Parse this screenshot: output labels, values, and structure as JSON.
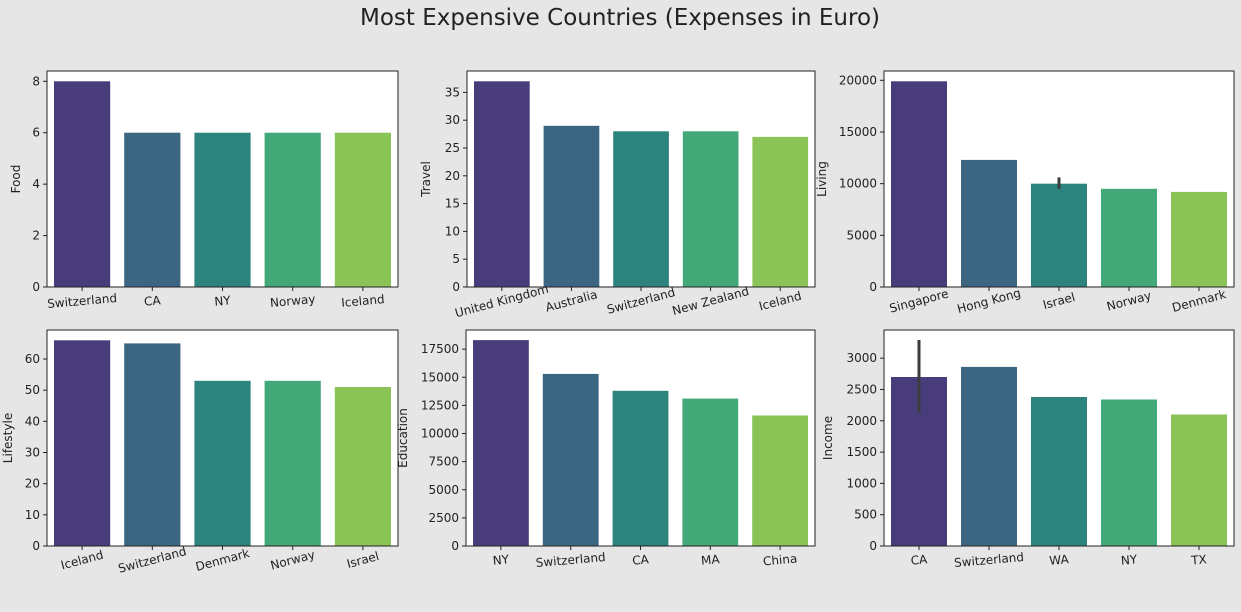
{
  "title": "Most Expensive Countries (Expenses in Euro)",
  "palette": [
    "#483d7a",
    "#3b6580",
    "#2d847e",
    "#42a877",
    "#8ac456"
  ],
  "chart_data": [
    {
      "type": "bar",
      "ylabel": "Food",
      "categories": [
        "Switzerland",
        "CA",
        "NY",
        "Norway",
        "Iceland"
      ],
      "values": [
        8,
        6,
        6,
        6,
        6
      ],
      "ylim": [
        0,
        8.4
      ],
      "yticks": [
        0,
        2,
        4,
        6,
        8
      ],
      "yticklabels": [
        "0",
        "2",
        "4",
        "6",
        "8"
      ],
      "xtick_rotation": 5,
      "grid": false
    },
    {
      "type": "bar",
      "ylabel": "Travel",
      "categories": [
        "United Kingdom",
        "Australia",
        "Switzerland",
        "New Zealand",
        "Iceland"
      ],
      "values": [
        37,
        29,
        28,
        28,
        27
      ],
      "ylim": [
        0,
        38.85
      ],
      "yticks": [
        0,
        5,
        10,
        15,
        20,
        25,
        30,
        35
      ],
      "yticklabels": [
        "0",
        "5",
        "10",
        "15",
        "20",
        "25",
        "30",
        "35"
      ],
      "xtick_rotation": 15,
      "grid": false
    },
    {
      "type": "bar",
      "ylabel": "Living",
      "categories": [
        "Singapore",
        "Hong Kong",
        "Israel",
        "Norway",
        "Denmark"
      ],
      "values": [
        19900,
        12300,
        10000,
        9500,
        9200
      ],
      "error_bars": [
        null,
        null,
        [
          9500,
          10600
        ],
        null,
        null
      ],
      "ylim": [
        0,
        20900
      ],
      "yticks": [
        0,
        5000,
        10000,
        15000,
        20000
      ],
      "yticklabels": [
        "0",
        "5000",
        "10000",
        "15000",
        "20000"
      ],
      "xtick_rotation": 15,
      "grid": false
    },
    {
      "type": "bar",
      "ylabel": "Lifestyle",
      "categories": [
        "Iceland",
        "Switzerland",
        "Denmark",
        "Norway",
        "Israel"
      ],
      "values": [
        66,
        65,
        53,
        53,
        51
      ],
      "ylim": [
        0,
        69.3
      ],
      "yticks": [
        0,
        10,
        20,
        30,
        40,
        50,
        60
      ],
      "yticklabels": [
        "0",
        "10",
        "20",
        "30",
        "40",
        "50",
        "60"
      ],
      "xtick_rotation": 15,
      "grid": false
    },
    {
      "type": "bar",
      "ylabel": "Education",
      "categories": [
        "NY",
        "Switzerland",
        "CA",
        "MA",
        "China"
      ],
      "values": [
        18300,
        15300,
        13800,
        13100,
        11600
      ],
      "ylim": [
        0,
        19200
      ],
      "yticks": [
        0,
        2500,
        5000,
        7500,
        10000,
        12500,
        15000,
        17500
      ],
      "yticklabels": [
        "0",
        "2500",
        "5000",
        "7500",
        "10000",
        "12500",
        "15000",
        "17500"
      ],
      "xtick_rotation": 5,
      "grid": false
    },
    {
      "type": "bar",
      "ylabel": "Income",
      "categories": [
        "CA",
        "Switzerland",
        "WA",
        "NY",
        "TX"
      ],
      "values": [
        2700,
        2860,
        2380,
        2340,
        2100
      ],
      "error_bars": [
        [
          2130,
          3290
        ],
        null,
        null,
        null,
        null
      ],
      "ylim": [
        0,
        3450
      ],
      "yticks": [
        0,
        500,
        1000,
        1500,
        2000,
        2500,
        3000
      ],
      "yticklabels": [
        "0",
        "500",
        "1000",
        "1500",
        "2000",
        "2500",
        "3000"
      ],
      "xtick_rotation": 5,
      "grid": false
    }
  ]
}
